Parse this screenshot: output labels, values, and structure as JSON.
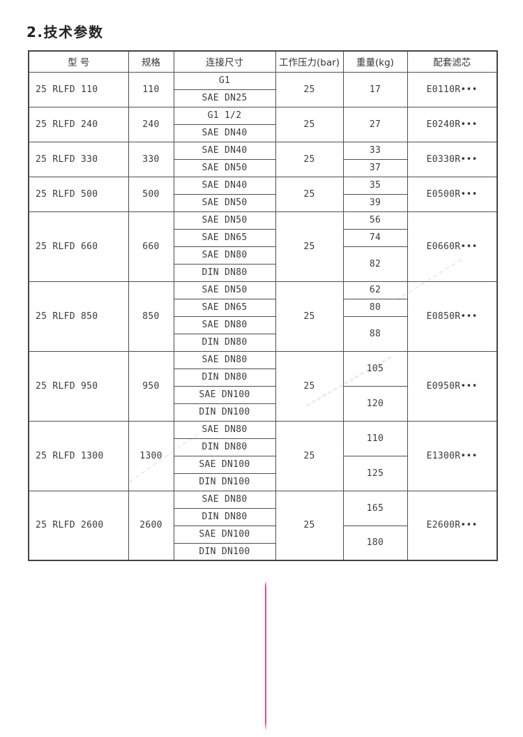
{
  "page": {
    "title": "2.技术参数"
  },
  "table": {
    "headers": [
      "型  号",
      "规格",
      "连接尺寸",
      "工作压力(bar)",
      "重量(kg)",
      "配套滤芯"
    ],
    "rows": [
      {
        "model": "25 RLFD 110",
        "spec": "110",
        "connections": [
          "G1",
          "SAE DN25"
        ],
        "pressure": "25",
        "weights": [
          {
            "value": "17",
            "span": 2
          }
        ],
        "filter": "E0110R•••"
      },
      {
        "model": "25 RLFD 240",
        "spec": "240",
        "connections": [
          "G1 1/2",
          "SAE DN40"
        ],
        "pressure": "25",
        "weights": [
          {
            "value": "27",
            "span": 2
          }
        ],
        "filter": "E0240R•••"
      },
      {
        "model": "25 RLFD 330",
        "spec": "330",
        "connections": [
          "SAE DN40",
          "SAE DN50"
        ],
        "pressure": "25",
        "weights": [
          {
            "value": "33",
            "span": 1
          },
          {
            "value": "37",
            "span": 1
          }
        ],
        "filter": "E0330R•••"
      },
      {
        "model": "25 RLFD 500",
        "spec": "500",
        "connections": [
          "SAE DN40",
          "SAE DN50"
        ],
        "pressure": "25",
        "weights": [
          {
            "value": "35",
            "span": 1
          },
          {
            "value": "39",
            "span": 1
          }
        ],
        "filter": "E0500R•••"
      },
      {
        "model": "25 RLFD 660",
        "spec": "660",
        "connections": [
          "SAE DN50",
          "SAE DN65",
          "SAE DN80",
          "DIN DN80"
        ],
        "pressure": "25",
        "weights": [
          {
            "value": "56",
            "span": 1
          },
          {
            "value": "74",
            "span": 1
          },
          {
            "value": "82",
            "span": 2
          }
        ],
        "filter": "E0660R•••"
      },
      {
        "model": "25 RLFD 850",
        "spec": "850",
        "connections": [
          "SAE DN50",
          "SAE DN65",
          "SAE DN80",
          "DIN DN80"
        ],
        "pressure": "25",
        "weights": [
          {
            "value": "62",
            "span": 1
          },
          {
            "value": "80",
            "span": 1
          },
          {
            "value": "88",
            "span": 2
          }
        ],
        "filter": "E0850R•••"
      },
      {
        "model": "25 RLFD 950",
        "spec": "950",
        "connections": [
          "SAE DN80",
          "DIN DN80",
          "SAE DN100",
          "DIN DN100"
        ],
        "pressure": "25",
        "weights": [
          {
            "value": "105",
            "span": 2
          },
          {
            "value": "120",
            "span": 2
          }
        ],
        "filter": "E0950R•••"
      },
      {
        "model": "25 RLFD 1300",
        "spec": "1300",
        "connections": [
          "SAE DN80",
          "DIN DN80",
          "SAE DN100",
          "DIN DN100"
        ],
        "pressure": "25",
        "weights": [
          {
            "value": "110",
            "span": 2
          },
          {
            "value": "125",
            "span": 2
          }
        ],
        "filter": "E1300R•••"
      },
      {
        "model": "25 RLFD 2600",
        "spec": "2600",
        "connections": [
          "SAE DN80",
          "DIN DN80",
          "SAE DN100",
          "DIN DN100"
        ],
        "pressure": "25",
        "weights": [
          {
            "value": "165",
            "span": 2
          },
          {
            "value": "180",
            "span": 2
          }
        ],
        "filter": "E2600R•••"
      }
    ]
  },
  "decor": {
    "divider_color": "#ee4590"
  }
}
